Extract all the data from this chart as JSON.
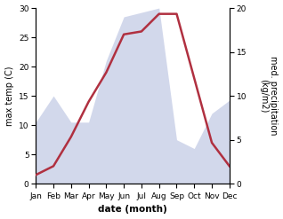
{
  "months": [
    "Jan",
    "Feb",
    "Mar",
    "Apr",
    "May",
    "Jun",
    "Jul",
    "Aug",
    "Sep",
    "Oct",
    "Nov",
    "Dec"
  ],
  "temperature": [
    1.5,
    3.0,
    8.0,
    14.0,
    19.0,
    25.5,
    26.0,
    29.0,
    29.0,
    18.0,
    7.0,
    3.0
  ],
  "precipitation": [
    7.0,
    10.0,
    7.0,
    7.0,
    14.0,
    19.0,
    19.5,
    20.0,
    5.0,
    4.0,
    8.0,
    9.5
  ],
  "temp_color": "#b03040",
  "precip_color": "#8090c8",
  "precip_fill_alpha": 0.35,
  "temp_ylim": [
    0,
    30
  ],
  "precip_ylim": [
    0,
    20
  ],
  "temp_yticks": [
    0,
    5,
    10,
    15,
    20,
    25,
    30
  ],
  "precip_yticks": [
    0,
    5,
    10,
    15,
    20
  ],
  "xlabel": "date (month)",
  "ylabel_left": "max temp (C)",
  "ylabel_right": "med. precipitation\n(kg/m2)",
  "bg_color": "#ffffff",
  "line_width": 1.8,
  "tick_fontsize": 6.5,
  "label_fontsize": 7.0,
  "xlabel_fontsize": 7.5
}
